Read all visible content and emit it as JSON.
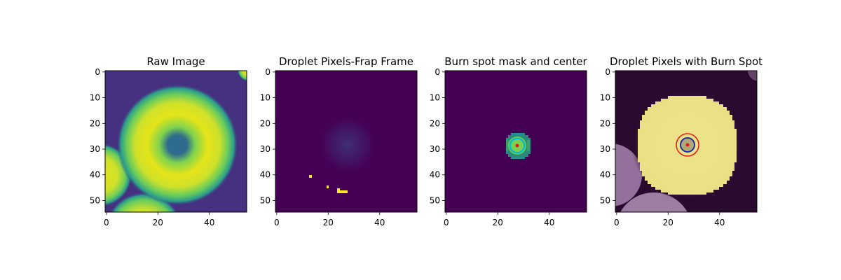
{
  "chart_data": [
    {
      "type": "heatmap",
      "title": "Raw Image",
      "xlim": [
        0,
        55
      ],
      "ylim": [
        55,
        0
      ],
      "xticks": [
        "0",
        "20",
        "40"
      ],
      "yticks": [
        "0",
        "10",
        "20",
        "30",
        "40",
        "50"
      ],
      "colormap": "viridis",
      "content": "Bright yellow-green annular droplet centered near (28, 29) with a dark blue burn spot at its center; partial droplets at left edge (y≈40), bottom (x≈15) and top-right corner."
    },
    {
      "type": "heatmap",
      "title": "Droplet Pixels-Frap Frame",
      "xlim": [
        0,
        55
      ],
      "ylim": [
        55,
        0
      ],
      "xticks": [
        "0",
        "20",
        "40"
      ],
      "yticks": [
        "0",
        "10",
        "20",
        "30",
        "40",
        "50"
      ],
      "colormap": "viridis",
      "content": "Mostly dark purple background with a faint blue blob around (28, 29) and a few yellow pixels near (13, 41), (20, 45) and (24–28, 46–47)."
    },
    {
      "type": "heatmap",
      "title": "Burn spot mask and center",
      "xlim": [
        0,
        55
      ],
      "ylim": [
        55,
        0
      ],
      "xticks": [
        "0",
        "20",
        "40"
      ],
      "yticks": [
        "0",
        "10",
        "20",
        "30",
        "40",
        "50"
      ],
      "colormap": "viridis",
      "content": "Dark purple background with a small teal/green pixelated mask around (28, 29), a cyan circle outline and a red center dot at (28, 29)."
    },
    {
      "type": "heatmap",
      "title": "Droplet Pixels with Burn Spot",
      "xlim": [
        0,
        55
      ],
      "ylim": [
        55,
        0
      ],
      "xticks": [
        "0",
        "20",
        "40"
      ],
      "yticks": [
        "0",
        "10",
        "20",
        "30",
        "40",
        "50"
      ],
      "colormap": "overlay",
      "content": "Pale yellow droplet mask centered near (28, 29) over a dark purple image with lilac neighbouring droplets; a red circle (radius ≈ 5), a dark-blue circle (radius ≈ 3) and a red center dot mark the burn spot at (28, 29)."
    }
  ],
  "colors": {
    "viridis_dark": "#440154",
    "viridis_blue": "#31688e",
    "viridis_teal": "#21918c",
    "viridis_green": "#5ec962",
    "viridis_yellow": "#fde725",
    "mask_yellow": "#f3ec8a",
    "overlay_bg": "#2a0a2e",
    "lilac": "#a07ba8",
    "burn_red": "#e8181b",
    "burn_blue": "#1f2fa0",
    "burn_cyan": "#00b8d9"
  }
}
